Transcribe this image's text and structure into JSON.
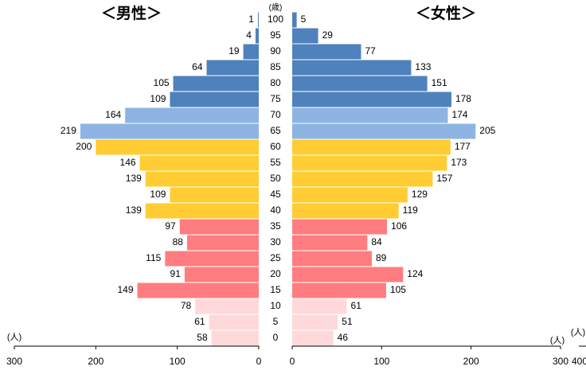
{
  "chart_data": {
    "type": "pyramid",
    "unit_label": "(歳)",
    "axis_unit": "(人)",
    "categories": [
      "100",
      "95",
      "90",
      "85",
      "80",
      "75",
      "70",
      "65",
      "60",
      "55",
      "50",
      "45",
      "40",
      "35",
      "30",
      "25",
      "20",
      "15",
      "10",
      "5",
      "0"
    ],
    "colors": [
      "#4f81bd",
      "#4f81bd",
      "#4f81bd",
      "#4f81bd",
      "#4f81bd",
      "#4f81bd",
      "#8db4e2",
      "#8db4e2",
      "#ffcc33",
      "#ffcc33",
      "#ffcc33",
      "#ffcc33",
      "#ffcc33",
      "#ff7c80",
      "#ff7c80",
      "#ff7c80",
      "#ff7c80",
      "#ff7c80",
      "#ffd9d9",
      "#ffd9d9",
      "#ffd9d9"
    ],
    "series": [
      {
        "name": "＜男性＞",
        "side": "left",
        "values": [
          1,
          4,
          19,
          64,
          105,
          109,
          164,
          219,
          200,
          146,
          139,
          109,
          139,
          97,
          88,
          115,
          91,
          149,
          78,
          61,
          58
        ]
      },
      {
        "name": "＜女性＞",
        "side": "right",
        "values": [
          5,
          29,
          77,
          133,
          151,
          178,
          174,
          205,
          177,
          173,
          157,
          129,
          119,
          106,
          84,
          89,
          124,
          105,
          61,
          51,
          46
        ]
      }
    ],
    "xlim": [
      0,
      300
    ],
    "xticks": [
      0,
      100,
      200,
      300
    ],
    "annotations": [
      "400"
    ]
  }
}
